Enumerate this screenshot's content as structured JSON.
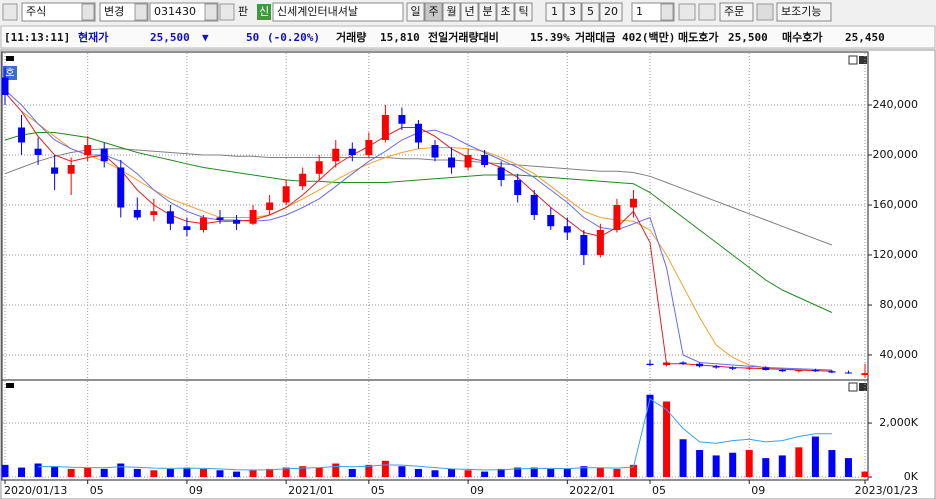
{
  "toolbar": {
    "market": "주식",
    "change": "변경",
    "code": "031430",
    "pan": "판",
    "new_badge": "신",
    "stock_name": "신세계인터내셔날",
    "periods": [
      "일",
      "주",
      "월",
      "년",
      "분",
      "초",
      "틱"
    ],
    "selected_period": 1,
    "multipliers": [
      1,
      3,
      5,
      20
    ],
    "count": 1,
    "order": "주문",
    "indicator": "보조기능"
  },
  "quote": {
    "time": "[11:13:11]",
    "price_label": "현재가",
    "price": "25,500",
    "direction": "▼",
    "change": "50",
    "change_pct": "(-0.20%)",
    "volume_label": "거래량",
    "volume": "15,810",
    "vol_ratio_label": "전일거래량대비",
    "vol_ratio": "15.39%",
    "amount_label": "거래대금",
    "amount": "402(백만)",
    "ask_label": "매도호가",
    "ask": "25,500",
    "bid_label": "매수호가",
    "bid": "25,450"
  },
  "badge": "호",
  "chart_data": [
    {
      "type": "candlestick",
      "up_color": "#ff0000",
      "down_color": "#0000ff",
      "open": [
        262000,
        222000,
        205000,
        190000,
        185000,
        200000,
        205000,
        190000,
        156000,
        152000,
        155000,
        143000,
        140000,
        150000,
        148000,
        145000,
        156000,
        162000,
        175000,
        185000,
        195000,
        205000,
        200000,
        212000,
        232000,
        225000,
        208000,
        198000,
        190000,
        200000,
        190000,
        180000,
        168000,
        152000,
        143000,
        136000,
        120000,
        140000,
        158000,
        33000,
        32000,
        34000,
        33000,
        31000,
        30000,
        29000,
        30000,
        28000,
        27000,
        28000,
        27000,
        26000,
        24000
      ],
      "high": [
        270000,
        232000,
        214000,
        200000,
        198000,
        215000,
        210000,
        196000,
        166000,
        165000,
        160000,
        150000,
        152000,
        156000,
        152000,
        160000,
        168000,
        180000,
        190000,
        200000,
        212000,
        210000,
        218000,
        240000,
        238000,
        228000,
        212000,
        206000,
        205000,
        204000,
        195000,
        185000,
        172000,
        158000,
        150000,
        140000,
        145000,
        165000,
        172000,
        36000,
        35000,
        35000,
        34000,
        32000,
        31000,
        30500,
        31000,
        29000,
        28500,
        29000,
        28000,
        27500,
        33000
      ],
      "low": [
        240000,
        200000,
        192000,
        172000,
        168000,
        195000,
        190000,
        150000,
        148000,
        147000,
        140000,
        135000,
        138000,
        145000,
        140000,
        144000,
        152000,
        160000,
        172000,
        180000,
        190000,
        195000,
        198000,
        210000,
        220000,
        205000,
        195000,
        185000,
        188000,
        190000,
        175000,
        162000,
        148000,
        140000,
        132000,
        112000,
        118000,
        138000,
        150000,
        31000,
        31000,
        32000,
        30000,
        29000,
        28000,
        28000,
        27500,
        26500,
        26000,
        26500,
        25500,
        25000,
        22000
      ],
      "close": [
        248000,
        210000,
        200000,
        185000,
        192000,
        208000,
        195000,
        158000,
        150000,
        155000,
        145000,
        140000,
        150000,
        148000,
        145000,
        156000,
        162000,
        175000,
        185000,
        195000,
        205000,
        200000,
        212000,
        232000,
        225000,
        210000,
        198000,
        190000,
        200000,
        192000,
        180000,
        168000,
        152000,
        143000,
        138000,
        120000,
        140000,
        160000,
        165000,
        32000,
        34000,
        33000,
        31000,
        30000,
        29000,
        30000,
        28000,
        27000,
        28000,
        27000,
        26000,
        25600,
        25500
      ],
      "series": [
        {
          "color": "#808080",
          "values": [
            185000,
            190000,
            195000,
            199000,
            202000,
            204000,
            205000,
            205000,
            204000,
            203000,
            202000,
            201000,
            200000,
            200000,
            199000,
            199000,
            198000,
            198000,
            198000,
            198000,
            198000,
            198000,
            198000,
            198000,
            197000,
            197000,
            196000,
            196000,
            195000,
            194000,
            193000,
            192000,
            191000,
            190000,
            189000,
            188000,
            187000,
            187000,
            186000,
            183000,
            178000,
            173000,
            168000,
            163000,
            158000,
            153000,
            148000,
            143000,
            138000,
            133000,
            128000,
            null,
            null
          ]
        },
        {
          "color": "#1f8a1f",
          "values": [
            212000,
            216000,
            218000,
            218000,
            216000,
            214000,
            210000,
            206000,
            202000,
            199000,
            196000,
            193000,
            190000,
            188000,
            186000,
            184000,
            182000,
            180000,
            179000,
            179000,
            178000,
            178000,
            178000,
            178000,
            179000,
            180000,
            181000,
            182000,
            183000,
            184000,
            184000,
            184000,
            183000,
            182000,
            181000,
            180000,
            179000,
            178000,
            177000,
            170000,
            160000,
            150000,
            140000,
            130000,
            120000,
            110000,
            100000,
            92000,
            86000,
            80000,
            74000,
            null,
            null
          ]
        },
        {
          "color": "#f0a030",
          "values": [
            null,
            235000,
            225000,
            215000,
            205000,
            200000,
            195000,
            188000,
            180000,
            172000,
            165000,
            160000,
            155000,
            150000,
            150000,
            150000,
            152000,
            158000,
            165000,
            172000,
            180000,
            187000,
            193000,
            198000,
            202000,
            205000,
            206000,
            206000,
            205000,
            203000,
            198000,
            192000,
            185000,
            175000,
            165000,
            155000,
            150000,
            148000,
            147000,
            140000,
            120000,
            95000,
            70000,
            48000,
            38000,
            32000,
            30000,
            29000,
            28000,
            27500,
            27000,
            null,
            null
          ]
        },
        {
          "color": "#6a6af0",
          "values": [
            252000,
            240000,
            225000,
            212000,
            205000,
            200000,
            200000,
            195000,
            185000,
            172000,
            162000,
            155000,
            150000,
            148000,
            148000,
            147000,
            148000,
            152000,
            158000,
            165000,
            175000,
            185000,
            195000,
            203000,
            212000,
            218000,
            220000,
            215000,
            208000,
            202000,
            196000,
            190000,
            182000,
            172000,
            162000,
            150000,
            142000,
            140000,
            145000,
            150000,
            110000,
            40000,
            34000,
            33000,
            32000,
            31000,
            30000,
            29500,
            29000,
            28500,
            28000,
            null,
            null
          ]
        },
        {
          "color": "#e02020",
          "values": [
            250000,
            235000,
            215000,
            200000,
            195000,
            198000,
            200000,
            188000,
            172000,
            160000,
            152000,
            147000,
            145000,
            147000,
            147000,
            148000,
            152000,
            158000,
            168000,
            180000,
            192000,
            200000,
            207000,
            215000,
            222000,
            222000,
            215000,
            205000,
            198000,
            195000,
            190000,
            182000,
            170000,
            158000,
            148000,
            138000,
            135000,
            142000,
            155000,
            130000,
            33000,
            33000,
            32000,
            31000,
            30000,
            29500,
            29000,
            28500,
            28000,
            27500,
            27000,
            null,
            null
          ]
        }
      ],
      "ylim": [
        21600,
        276000
      ],
      "yticks": [
        {
          "value": 40000,
          "label": "40,000"
        },
        {
          "value": 80000,
          "label": "80,000"
        },
        {
          "value": 120000,
          "label": "120,000"
        },
        {
          "value": 160000,
          "label": "160,000"
        },
        {
          "value": 200000,
          "label": "200,000"
        },
        {
          "value": 240000,
          "label": "240,000"
        }
      ],
      "grid": true
    },
    {
      "type": "bar",
      "up_color": "#ff0000",
      "down_color": "#0000ff",
      "categories": [
        "2020/01/13",
        null,
        null,
        null,
        null,
        "05",
        null,
        null,
        null,
        null,
        null,
        "09",
        null,
        null,
        null,
        null,
        null,
        "2021/01",
        null,
        null,
        null,
        null,
        "05",
        null,
        null,
        null,
        null,
        null,
        "09",
        null,
        null,
        null,
        null,
        null,
        "2022/01",
        null,
        null,
        null,
        null,
        "05",
        null,
        null,
        null,
        null,
        null,
        "09",
        null,
        null,
        null,
        null,
        null,
        null,
        "2023/01/23"
      ],
      "values": [
        450000,
        350000,
        500000,
        400000,
        300000,
        350000,
        300000,
        500000,
        300000,
        250000,
        300000,
        350000,
        300000,
        250000,
        200000,
        250000,
        300000,
        350000,
        400000,
        350000,
        500000,
        300000,
        450000,
        600000,
        400000,
        300000,
        250000,
        300000,
        250000,
        200000,
        300000,
        350000,
        350000,
        300000,
        300000,
        400000,
        350000,
        300000,
        450000,
        3050000,
        2800000,
        1400000,
        1000000,
        800000,
        900000,
        1000000,
        700000,
        800000,
        1100000,
        1500000,
        1000000,
        700000,
        200000
      ],
      "series": [
        {
          "color": "#3aa0e8",
          "values": [
            null,
            null,
            380000,
            390000,
            360000,
            350000,
            340000,
            380000,
            360000,
            330000,
            320000,
            330000,
            320000,
            300000,
            270000,
            260000,
            270000,
            300000,
            330000,
            350000,
            390000,
            380000,
            400000,
            450000,
            440000,
            400000,
            350000,
            300000,
            280000,
            260000,
            270000,
            300000,
            320000,
            320000,
            310000,
            340000,
            340000,
            330000,
            370000,
            2900000,
            2500000,
            1800000,
            1300000,
            1250000,
            1350000,
            1400000,
            1300000,
            1350000,
            1500000,
            1600000,
            1600000,
            null,
            null
          ]
        }
      ],
      "ylim": [
        0,
        3300000
      ],
      "yticks": [
        {
          "value": 0,
          "label": "0K"
        },
        {
          "value": 2000000,
          "label": "2,000K"
        }
      ],
      "grid": true
    }
  ]
}
